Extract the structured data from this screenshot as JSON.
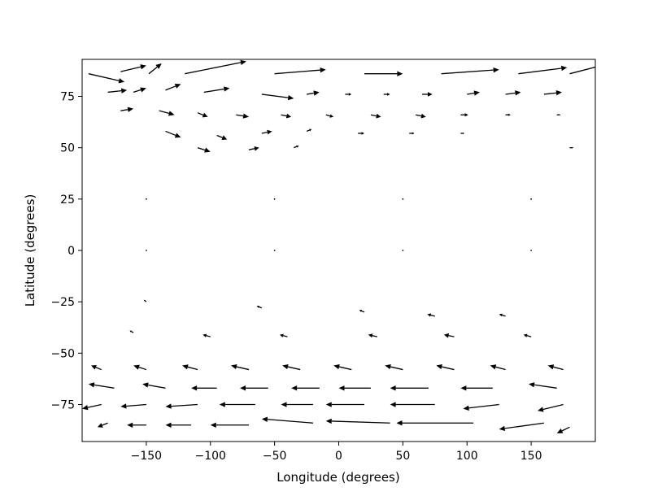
{
  "chart_data": {
    "type": "quiver",
    "title": "",
    "xlabel": "Longitude (degrees)",
    "ylabel": "Latitude (degrees)",
    "xlim": [
      -200,
      200
    ],
    "ylim": [
      -93,
      93
    ],
    "xticks": [
      -150,
      -100,
      -50,
      0,
      50,
      100,
      150
    ],
    "xtick_labels": [
      "−150",
      "−100",
      "−50",
      "0",
      "50",
      "100",
      "150"
    ],
    "yticks": [
      75,
      50,
      25,
      0,
      -25,
      -50,
      -75
    ],
    "ytick_labels": [
      "75",
      "50",
      "25",
      "0",
      "−25",
      "−50",
      "−75"
    ],
    "grid": false,
    "arrow_color": "#000000",
    "vectors": [
      {
        "x": -195,
        "y": 86,
        "u": 28,
        "v": -4
      },
      {
        "x": -170,
        "y": 87,
        "u": 20,
        "v": 3
      },
      {
        "x": -148,
        "y": 86,
        "u": 10,
        "v": 5
      },
      {
        "x": -120,
        "y": 86,
        "u": 48,
        "v": 6
      },
      {
        "x": -50,
        "y": 86,
        "u": 40,
        "v": 2
      },
      {
        "x": 20,
        "y": 86,
        "u": 30,
        "v": 0
      },
      {
        "x": 80,
        "y": 86,
        "u": 45,
        "v": 2
      },
      {
        "x": 140,
        "y": 86,
        "u": 38,
        "v": 3
      },
      {
        "x": 180,
        "y": 86,
        "u": 25,
        "v": 4
      },
      {
        "x": -180,
        "y": 77,
        "u": 15,
        "v": 1
      },
      {
        "x": -160,
        "y": 77,
        "u": 10,
        "v": 2
      },
      {
        "x": -135,
        "y": 78,
        "u": 12,
        "v": 3
      },
      {
        "x": -105,
        "y": 77,
        "u": 20,
        "v": 2
      },
      {
        "x": -60,
        "y": 76,
        "u": 25,
        "v": -2
      },
      {
        "x": -25,
        "y": 76,
        "u": 10,
        "v": 1
      },
      {
        "x": 5,
        "y": 76,
        "u": 5,
        "v": 0
      },
      {
        "x": 35,
        "y": 76,
        "u": 5,
        "v": 0
      },
      {
        "x": 65,
        "y": 76,
        "u": 8,
        "v": 0
      },
      {
        "x": 100,
        "y": 76,
        "u": 10,
        "v": 1
      },
      {
        "x": 130,
        "y": 76,
        "u": 12,
        "v": 1
      },
      {
        "x": 160,
        "y": 76,
        "u": 14,
        "v": 1
      },
      {
        "x": -170,
        "y": 68,
        "u": 10,
        "v": 1
      },
      {
        "x": -140,
        "y": 68,
        "u": 12,
        "v": -2
      },
      {
        "x": -110,
        "y": 67,
        "u": 8,
        "v": -2
      },
      {
        "x": -80,
        "y": 66,
        "u": 10,
        "v": -1
      },
      {
        "x": -45,
        "y": 66,
        "u": 8,
        "v": -1
      },
      {
        "x": -10,
        "y": 66,
        "u": 6,
        "v": -1
      },
      {
        "x": 25,
        "y": 66,
        "u": 8,
        "v": -1
      },
      {
        "x": 60,
        "y": 66,
        "u": 8,
        "v": -1
      },
      {
        "x": 95,
        "y": 66,
        "u": 6,
        "v": 0
      },
      {
        "x": 130,
        "y": 66,
        "u": 4,
        "v": 0
      },
      {
        "x": 170,
        "y": 66,
        "u": 3,
        "v": 0
      },
      {
        "x": -135,
        "y": 58,
        "u": 12,
        "v": -3
      },
      {
        "x": -95,
        "y": 56,
        "u": 8,
        "v": -2
      },
      {
        "x": -60,
        "y": 57,
        "u": 8,
        "v": 1
      },
      {
        "x": -25,
        "y": 58,
        "u": 4,
        "v": 1
      },
      {
        "x": 15,
        "y": 57,
        "u": 5,
        "v": 0
      },
      {
        "x": 55,
        "y": 57,
        "u": 4,
        "v": 0
      },
      {
        "x": 95,
        "y": 57,
        "u": 3,
        "v": 0
      },
      {
        "x": -110,
        "y": 50,
        "u": 10,
        "v": -2
      },
      {
        "x": -70,
        "y": 49,
        "u": 8,
        "v": 1
      },
      {
        "x": -35,
        "y": 50,
        "u": 4,
        "v": 1
      },
      {
        "x": 180,
        "y": 50,
        "u": 3,
        "v": 0
      },
      {
        "x": -150,
        "y": 25,
        "u": 1,
        "v": 0
      },
      {
        "x": -50,
        "y": 25,
        "u": 1,
        "v": 0
      },
      {
        "x": 50,
        "y": 25,
        "u": 1,
        "v": 0
      },
      {
        "x": 150,
        "y": 25,
        "u": 1,
        "v": 0
      },
      {
        "x": -150,
        "y": 0,
        "u": 1,
        "v": 0
      },
      {
        "x": -50,
        "y": 0,
        "u": 1,
        "v": 0
      },
      {
        "x": 50,
        "y": 0,
        "u": 1,
        "v": 0
      },
      {
        "x": 150,
        "y": 0,
        "u": 1,
        "v": 0
      },
      {
        "x": -150,
        "y": -25,
        "u": -2,
        "v": 1
      },
      {
        "x": -60,
        "y": -28,
        "u": -4,
        "v": 1
      },
      {
        "x": 20,
        "y": -30,
        "u": -4,
        "v": 1
      },
      {
        "x": 75,
        "y": -32,
        "u": -6,
        "v": 1
      },
      {
        "x": 130,
        "y": -32,
        "u": -5,
        "v": 1
      },
      {
        "x": -160,
        "y": -40,
        "u": -3,
        "v": 1
      },
      {
        "x": -100,
        "y": -42,
        "u": -6,
        "v": 1
      },
      {
        "x": -40,
        "y": -42,
        "u": -6,
        "v": 1
      },
      {
        "x": 30,
        "y": -42,
        "u": -7,
        "v": 1
      },
      {
        "x": 90,
        "y": -42,
        "u": -8,
        "v": 1
      },
      {
        "x": 150,
        "y": -42,
        "u": -6,
        "v": 1
      },
      {
        "x": -185,
        "y": -58,
        "u": -8,
        "v": 2
      },
      {
        "x": -150,
        "y": -58,
        "u": -10,
        "v": 2
      },
      {
        "x": -110,
        "y": -58,
        "u": -12,
        "v": 2
      },
      {
        "x": -70,
        "y": -58,
        "u": -14,
        "v": 2
      },
      {
        "x": -30,
        "y": -58,
        "u": -14,
        "v": 2
      },
      {
        "x": 10,
        "y": -58,
        "u": -14,
        "v": 2
      },
      {
        "x": 50,
        "y": -58,
        "u": -14,
        "v": 2
      },
      {
        "x": 90,
        "y": -58,
        "u": -14,
        "v": 2
      },
      {
        "x": 130,
        "y": -58,
        "u": -12,
        "v": 2
      },
      {
        "x": 175,
        "y": -58,
        "u": -12,
        "v": 2
      },
      {
        "x": -175,
        "y": -67,
        "u": -20,
        "v": 2
      },
      {
        "x": -135,
        "y": -67,
        "u": -18,
        "v": 2
      },
      {
        "x": -95,
        "y": -67,
        "u": -20,
        "v": 0
      },
      {
        "x": -55,
        "y": -67,
        "u": -22,
        "v": 0
      },
      {
        "x": -15,
        "y": -67,
        "u": -22,
        "v": 0
      },
      {
        "x": 25,
        "y": -67,
        "u": -25,
        "v": 0
      },
      {
        "x": 70,
        "y": -67,
        "u": -30,
        "v": 0
      },
      {
        "x": 120,
        "y": -67,
        "u": -25,
        "v": 0
      },
      {
        "x": 170,
        "y": -67,
        "u": -22,
        "v": 2
      },
      {
        "x": -185,
        "y": -75,
        "u": -15,
        "v": -2
      },
      {
        "x": -150,
        "y": -75,
        "u": -20,
        "v": -1
      },
      {
        "x": -110,
        "y": -75,
        "u": -25,
        "v": -1
      },
      {
        "x": -65,
        "y": -75,
        "u": -28,
        "v": 0
      },
      {
        "x": -20,
        "y": -75,
        "u": -25,
        "v": 0
      },
      {
        "x": 20,
        "y": -75,
        "u": -30,
        "v": 0
      },
      {
        "x": 75,
        "y": -75,
        "u": -35,
        "v": 0
      },
      {
        "x": 125,
        "y": -75,
        "u": -28,
        "v": -2
      },
      {
        "x": 175,
        "y": -75,
        "u": -20,
        "v": -3
      },
      {
        "x": -180,
        "y": -84,
        "u": -8,
        "v": -2
      },
      {
        "x": -150,
        "y": -85,
        "u": -15,
        "v": 0
      },
      {
        "x": -115,
        "y": -85,
        "u": -20,
        "v": 0
      },
      {
        "x": -70,
        "y": -85,
        "u": -30,
        "v": 0
      },
      {
        "x": -20,
        "y": -84,
        "u": -40,
        "v": 2
      },
      {
        "x": 40,
        "y": -84,
        "u": -50,
        "v": 1
      },
      {
        "x": 105,
        "y": -84,
        "u": -60,
        "v": 0
      },
      {
        "x": 160,
        "y": -84,
        "u": -35,
        "v": -3
      },
      {
        "x": 180,
        "y": -86,
        "u": -10,
        "v": -3
      }
    ]
  }
}
